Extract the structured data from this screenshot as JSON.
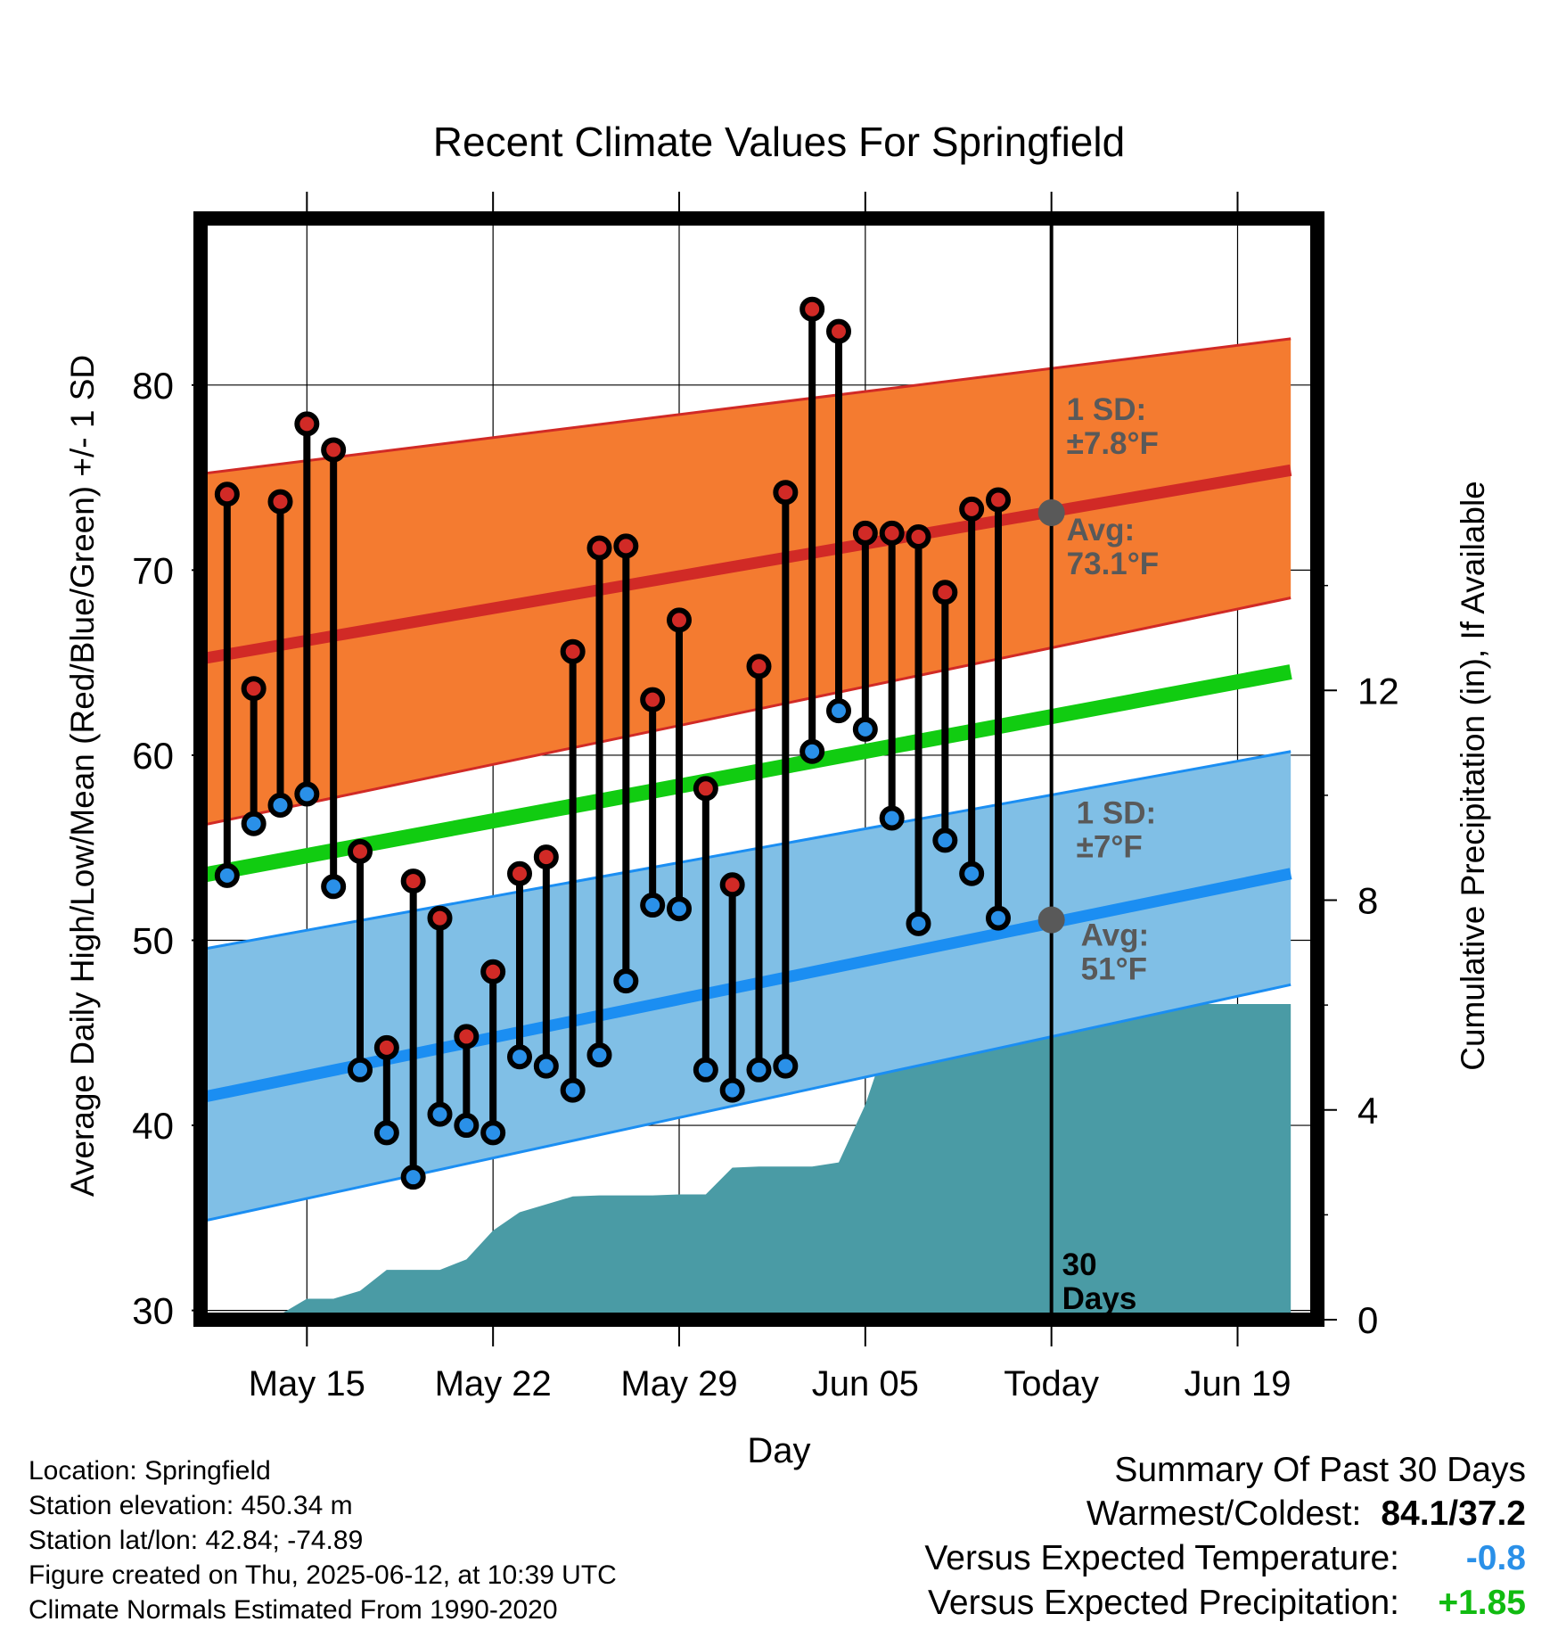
{
  "chart_data": {
    "type": "line",
    "title": "Recent Climate Values For Springfield",
    "xlabel": "Day",
    "ylabel_left": "Average Daily High/Low/Mean (Red/Blue/Green) +/- 1 SD",
    "ylabel_right": "Cumulative Precipitation (in), If Available",
    "xlim": [
      "2025-05-11",
      "2025-06-22"
    ],
    "ylim_left": [
      29.5,
      89
    ],
    "ylim_right": [
      0,
      21
    ],
    "x_ticks": [
      {
        "date": "2025-05-15",
        "label": "May 15"
      },
      {
        "date": "2025-05-22",
        "label": "May 22"
      },
      {
        "date": "2025-05-29",
        "label": "May 29"
      },
      {
        "date": "2025-06-05",
        "label": "Jun 05"
      },
      {
        "date": "2025-06-12",
        "label": "Today"
      },
      {
        "date": "2025-06-19",
        "label": "Jun 19"
      }
    ],
    "y_ticks_left": [
      "30",
      "40",
      "50",
      "60",
      "70",
      "80"
    ],
    "y_ticks_right": [
      "0",
      "4",
      "8",
      "12"
    ],
    "grid": true,
    "normals": {
      "high_mean": [
        {
          "date": "2025-05-11",
          "value": 65.2
        },
        {
          "date": "2025-06-21",
          "value": 75.4
        }
      ],
      "high_upper": [
        {
          "date": "2025-05-11",
          "value": 75.2
        },
        {
          "date": "2025-06-21",
          "value": 82.5
        }
      ],
      "high_lower": [
        {
          "date": "2025-05-11",
          "value": 56.2
        },
        {
          "date": "2025-06-21",
          "value": 68.5
        }
      ],
      "low_mean": [
        {
          "date": "2025-05-11",
          "value": 41.5
        },
        {
          "date": "2025-06-21",
          "value": 53.6
        }
      ],
      "low_upper": [
        {
          "date": "2025-05-11",
          "value": 49.5
        },
        {
          "date": "2025-06-21",
          "value": 60.2
        }
      ],
      "low_lower": [
        {
          "date": "2025-05-11",
          "value": 34.8
        },
        {
          "date": "2025-06-21",
          "value": 47.6
        }
      ],
      "daily_mean": [
        {
          "date": "2025-05-11",
          "value": 53.5
        },
        {
          "date": "2025-06-21",
          "value": 64.5
        }
      ]
    },
    "series": [
      {
        "name": "High",
        "x": [
          "2025-05-12",
          "2025-05-13",
          "2025-05-14",
          "2025-05-15",
          "2025-05-16",
          "2025-05-17",
          "2025-05-18",
          "2025-05-19",
          "2025-05-20",
          "2025-05-21",
          "2025-05-22",
          "2025-05-23",
          "2025-05-24",
          "2025-05-25",
          "2025-05-26",
          "2025-05-27",
          "2025-05-28",
          "2025-05-29",
          "2025-05-30",
          "2025-05-31",
          "2025-06-01",
          "2025-06-02",
          "2025-06-03",
          "2025-06-04",
          "2025-06-05",
          "2025-06-06",
          "2025-06-07",
          "2025-06-08",
          "2025-06-09",
          "2025-06-10",
          "2025-06-11"
        ],
        "values": [
          74.1,
          63.6,
          73.7,
          77.9,
          76.5,
          54.8,
          44.2,
          53.2,
          51.2,
          44.8,
          48.3,
          53.6,
          54.5,
          65.6,
          71.2,
          71.3,
          63.0,
          67.3,
          58.2,
          53.0,
          64.8,
          74.2,
          84.1,
          82.9,
          72.0,
          72.0,
          71.8,
          68.8,
          73.3,
          73.8,
          null
        ]
      },
      {
        "name": "Low",
        "x": [
          "2025-05-12",
          "2025-05-13",
          "2025-05-14",
          "2025-05-15",
          "2025-05-16",
          "2025-05-17",
          "2025-05-18",
          "2025-05-19",
          "2025-05-20",
          "2025-05-21",
          "2025-05-22",
          "2025-05-23",
          "2025-05-24",
          "2025-05-25",
          "2025-05-26",
          "2025-05-27",
          "2025-05-28",
          "2025-05-29",
          "2025-05-30",
          "2025-05-31",
          "2025-06-01",
          "2025-06-02",
          "2025-06-03",
          "2025-06-04",
          "2025-06-05",
          "2025-06-06",
          "2025-06-07",
          "2025-06-08",
          "2025-06-09",
          "2025-06-10",
          "2025-06-11"
        ],
        "values": [
          53.5,
          56.3,
          57.3,
          57.9,
          52.9,
          43.0,
          39.6,
          37.2,
          40.6,
          40.0,
          39.6,
          43.7,
          43.2,
          41.9,
          43.8,
          47.8,
          51.9,
          51.7,
          43.0,
          41.9,
          43.0,
          43.2,
          60.2,
          62.4,
          61.4,
          56.6,
          50.9,
          55.4,
          53.6,
          51.2,
          null
        ]
      }
    ],
    "precipitation": {
      "x": [
        "2025-05-11",
        "2025-05-13",
        "2025-05-14",
        "2025-05-15",
        "2025-05-16",
        "2025-05-17",
        "2025-05-18",
        "2025-05-19",
        "2025-05-20",
        "2025-05-21",
        "2025-05-22",
        "2025-05-23",
        "2025-05-24",
        "2025-05-25",
        "2025-05-26",
        "2025-05-27",
        "2025-05-28",
        "2025-05-29",
        "2025-05-30",
        "2025-05-31",
        "2025-06-01",
        "2025-06-02",
        "2025-06-03",
        "2025-06-04",
        "2025-06-05",
        "2025-06-06",
        "2025-06-07",
        "2025-06-08",
        "2025-06-09",
        "2025-06-10",
        "2025-06-11",
        "2025-06-21"
      ],
      "values": [
        0,
        0,
        0.1,
        0.4,
        0.4,
        0.55,
        0.95,
        0.95,
        0.95,
        1.15,
        1.7,
        2.05,
        2.2,
        2.35,
        2.37,
        2.37,
        2.37,
        2.39,
        2.39,
        2.9,
        2.92,
        2.92,
        2.92,
        3.0,
        4.1,
        5.6,
        5.62,
        5.8,
        6.02,
        6.02,
        6.02,
        6.02
      ]
    },
    "annotations": {
      "high_sd": "1 SD:\n±7.8°F",
      "high_avg": "Avg:\n73.1°F",
      "low_sd": "1 SD:\n±7°F",
      "low_avg": "Avg:\n51°F",
      "period": "30\nDays",
      "today_high": 73.1,
      "today_low": 51.1
    },
    "colors": {
      "high_band": "#f47b30",
      "high_line": "#d12a26",
      "low_band": "#80bfe6",
      "low_line": "#1b8ef2",
      "mean_line": "#11cc11",
      "precip": "#4a9ba5",
      "high_marker": "#d12a26",
      "low_marker": "#2a90e8",
      "today_marker": "#595959"
    }
  },
  "meta": {
    "location": "Location: Springfield",
    "elevation": "Station elevation: 450.34 m",
    "latlon": "Station lat/lon: 42.84; -74.89",
    "created": "Figure created on Thu, 2025-06-12, at 10:39 UTC",
    "normals": "Climate Normals Estimated From 1990-2020"
  },
  "summary": {
    "title": "Summary Of Past 30 Days",
    "warmest_label": "Warmest/Coldest:",
    "warmest_value": "84.1/37.2",
    "temp_label": "Versus Expected Temperature:",
    "temp_value": "-0.8",
    "temp_color": "#2a90e8",
    "precip_label": "Versus Expected Precipitation:",
    "precip_value": "+1.85",
    "precip_color": "#11bb11"
  }
}
